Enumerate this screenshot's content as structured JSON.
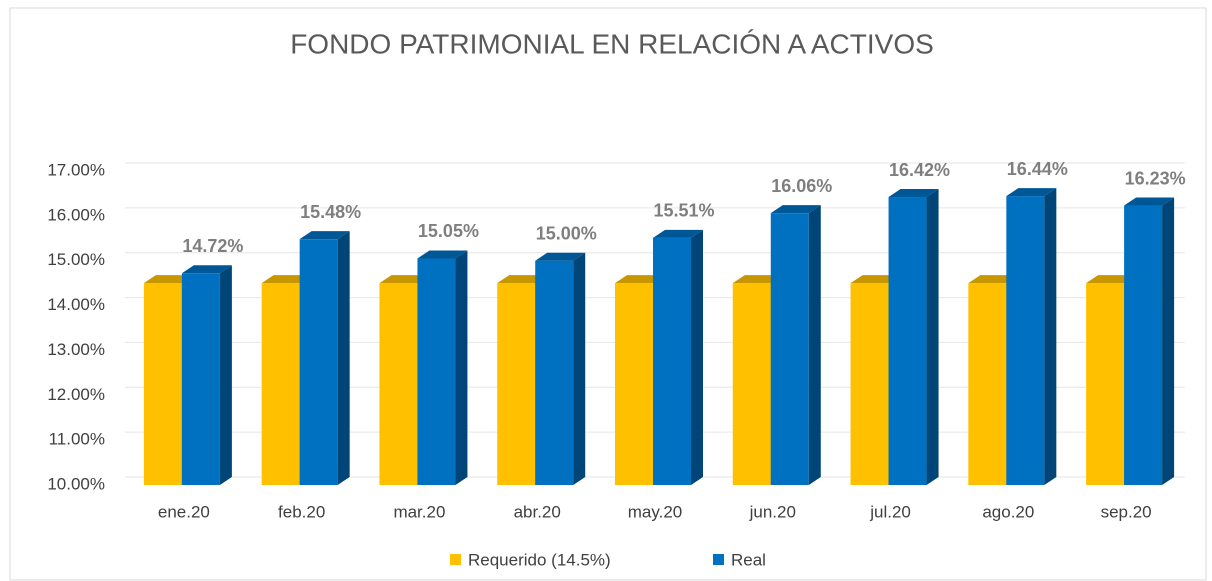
{
  "chart_data": {
    "type": "bar",
    "title": "FONDO PATRIMONIAL EN RELACIÓN A ACTIVOS",
    "categories": [
      "ene.20",
      "feb.20",
      "mar.20",
      "abr.20",
      "may.20",
      "jun.20",
      "jul.20",
      "ago.20",
      "sep.20"
    ],
    "series": [
      {
        "name": "Requerido (14.5%)",
        "color": "#ffc000",
        "values": [
          14.5,
          14.5,
          14.5,
          14.5,
          14.5,
          14.5,
          14.5,
          14.5,
          14.5
        ]
      },
      {
        "name": "Real",
        "color": "#0070c0",
        "values": [
          14.72,
          15.48,
          15.05,
          15.0,
          15.51,
          16.06,
          16.42,
          16.44,
          16.23
        ],
        "value_labels": [
          "14.72%",
          "15.48%",
          "15.05%",
          "15.00%",
          "15.51%",
          "16.06%",
          "16.42%",
          "16.44%",
          "16.23%"
        ]
      }
    ],
    "ylim": [
      10,
      17
    ],
    "yticks": [
      {
        "value": 10,
        "label": "10.00%"
      },
      {
        "value": 11,
        "label": "11.00%"
      },
      {
        "value": 12,
        "label": "12.00%"
      },
      {
        "value": 13,
        "label": "13.00%"
      },
      {
        "value": 14,
        "label": "14.00%"
      },
      {
        "value": 15,
        "label": "15.00%"
      },
      {
        "value": 16,
        "label": "16.00%"
      },
      {
        "value": 17,
        "label": "17.00%"
      }
    ],
    "grid": true,
    "legend": "bottom"
  }
}
